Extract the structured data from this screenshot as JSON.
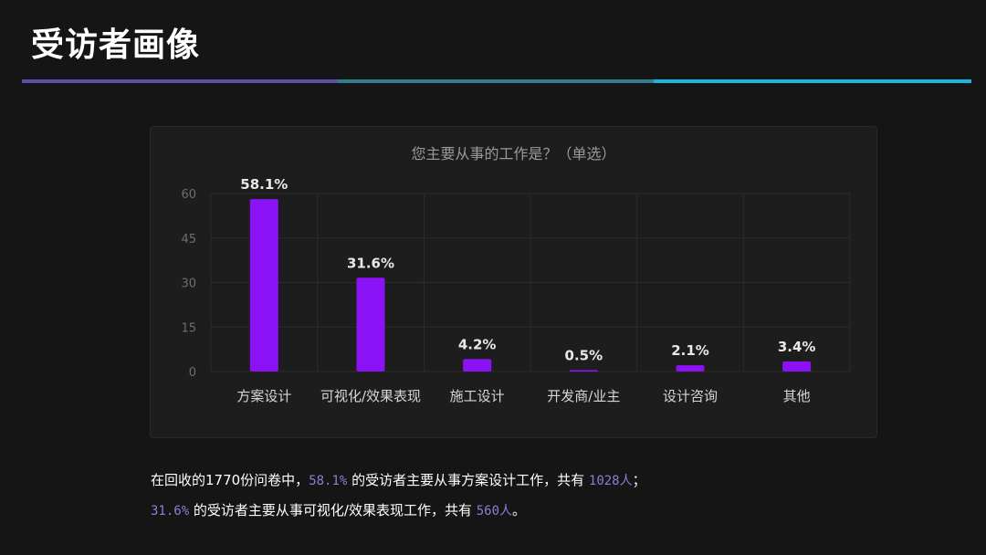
{
  "page": {
    "title": "受访者画像"
  },
  "colors": {
    "bar": "#8b12f5",
    "divider": [
      "#5b4fa8",
      "#2f7f8a",
      "#16b6e0"
    ],
    "highlight": "#8a7fd6"
  },
  "chart_data": {
    "type": "bar",
    "title": "您主要从事的工作是？（单选）",
    "categories": [
      "方案设计",
      "可视化/效果表现",
      "施工设计",
      "开发商/业主",
      "设计咨询",
      "其他"
    ],
    "values": [
      58.1,
      31.6,
      4.2,
      0.5,
      2.1,
      3.4
    ],
    "data_labels": [
      "58.1%",
      "31.6%",
      "4.2%",
      "0.5%",
      "2.1%",
      "3.4%"
    ],
    "yticks": [
      0,
      15,
      30,
      45,
      60
    ],
    "ylim": [
      0,
      60
    ],
    "grid": true,
    "xlabel": "",
    "ylabel": ""
  },
  "caption": {
    "l1_a": "在回收的1770份问卷中，",
    "l1_pct": "58.1%",
    "l1_b": " 的受访者主要从事方案设计工作，共有 ",
    "l1_count": "1028人",
    "l1_end": "；",
    "l2_pct": "31.6%",
    "l2_b": " 的受访者主要从事可视化/效果表现工作，共有 ",
    "l2_count": "560人",
    "l2_end": "。"
  }
}
